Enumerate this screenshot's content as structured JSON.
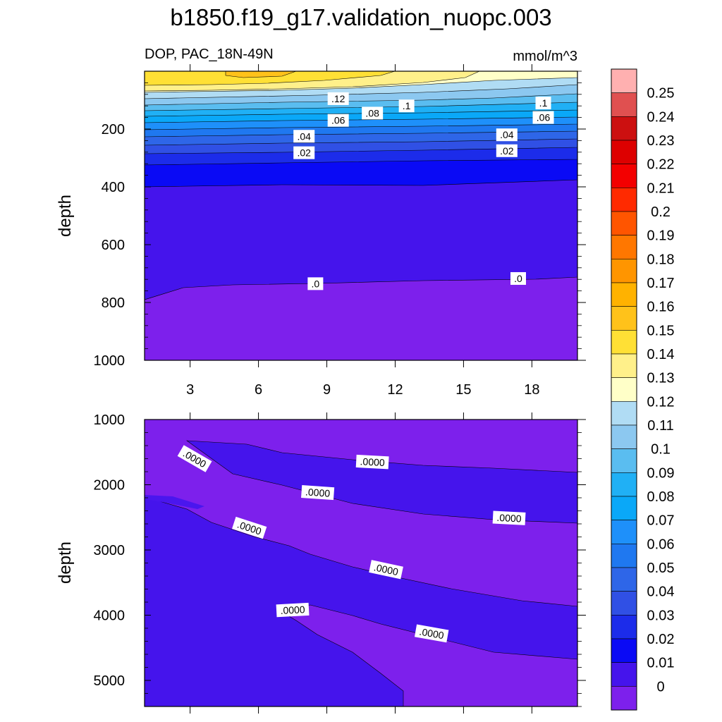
{
  "chart_data": {
    "type": "contour",
    "title": "b1850.f19_g17.validation_nuopc.003",
    "colorbar": {
      "units": "mmol/m^3",
      "levels": [
        "0.25",
        "0.24",
        "0.23",
        "0.22",
        "0.21",
        "0.2",
        "0.19",
        "0.18",
        "0.17",
        "0.16",
        "0.15",
        "0.14",
        "0.13",
        "0.12",
        "0.11",
        "0.1",
        "0.09",
        "0.08",
        "0.07",
        "0.06",
        "0.05",
        "0.04",
        "0.03",
        "0.02",
        "0.01",
        "0"
      ],
      "colors": [
        "#FFB0B0",
        "#E05050",
        "#CC1010",
        "#DD0000",
        "#F30000",
        "#FF2A00",
        "#FF5500",
        "#FF7700",
        "#FF9500",
        "#FFB200",
        "#FFC21A",
        "#FFE035",
        "#FFF08A",
        "#FFFFC8",
        "#B0DCF4",
        "#8CC8F0",
        "#5ABDF0",
        "#20B0F5",
        "#0AA8F8",
        "#1E90FA",
        "#1F78F0",
        "#2E66E8",
        "#3050E5",
        "#1C2CEA",
        "#0A0AF5",
        "#4514EC",
        "#7D20EC"
      ]
    },
    "panels": [
      {
        "subtitle": "DOP, PAC_18N-49N",
        "units_label": "mmol/m^3",
        "ylabel": "depth",
        "ylim": [
          1000,
          0
        ],
        "yticks": [
          "200",
          "400",
          "600",
          "800",
          "1000"
        ],
        "xlim": [
          1,
          20
        ],
        "xticks": [
          "3",
          "6",
          "9",
          "12",
          "15",
          "18"
        ],
        "contour_labels": [
          {
            "text": ".12",
            "x": 9.5,
            "depth": 95
          },
          {
            "text": ".1",
            "x": 12.5,
            "depth": 120
          },
          {
            "text": ".1",
            "x": 18.5,
            "depth": 110
          },
          {
            "text": ".08",
            "x": 11.0,
            "depth": 145
          },
          {
            "text": ".06",
            "x": 9.5,
            "depth": 170
          },
          {
            "text": ".06",
            "x": 18.5,
            "depth": 160
          },
          {
            "text": ".04",
            "x": 8.0,
            "depth": 225
          },
          {
            "text": ".04",
            "x": 16.9,
            "depth": 220
          },
          {
            "text": ".02",
            "x": 8.0,
            "depth": 282
          },
          {
            "text": ".02",
            "x": 16.9,
            "depth": 275
          },
          {
            "text": ".0",
            "x": 8.5,
            "depth": 735
          },
          {
            "text": ".0",
            "x": 17.4,
            "depth": 717
          }
        ]
      },
      {
        "ylabel": "depth",
        "ylim": [
          5400,
          1000
        ],
        "yticks": [
          "1000",
          "2000",
          "3000",
          "4000",
          "5000"
        ],
        "xlim": [
          1,
          20
        ],
        "contour_labels": [
          {
            "text": ".0000",
            "x": 3.2,
            "depth": 1600,
            "rotation": 30
          },
          {
            "text": ".0000",
            "x": 11.0,
            "depth": 1650,
            "rotation": 3
          },
          {
            "text": ".0000",
            "x": 8.6,
            "depth": 2120,
            "rotation": 4
          },
          {
            "text": ".0000",
            "x": 5.6,
            "depth": 2660,
            "rotation": 18
          },
          {
            "text": ".0000",
            "x": 17.0,
            "depth": 2510,
            "rotation": 3
          },
          {
            "text": ".0000",
            "x": 11.6,
            "depth": 3300,
            "rotation": 12
          },
          {
            "text": ".0000",
            "x": 7.5,
            "depth": 3920,
            "rotation": -3
          },
          {
            "text": ".0000",
            "x": 13.6,
            "depth": 4280,
            "rotation": 10
          }
        ]
      }
    ]
  }
}
